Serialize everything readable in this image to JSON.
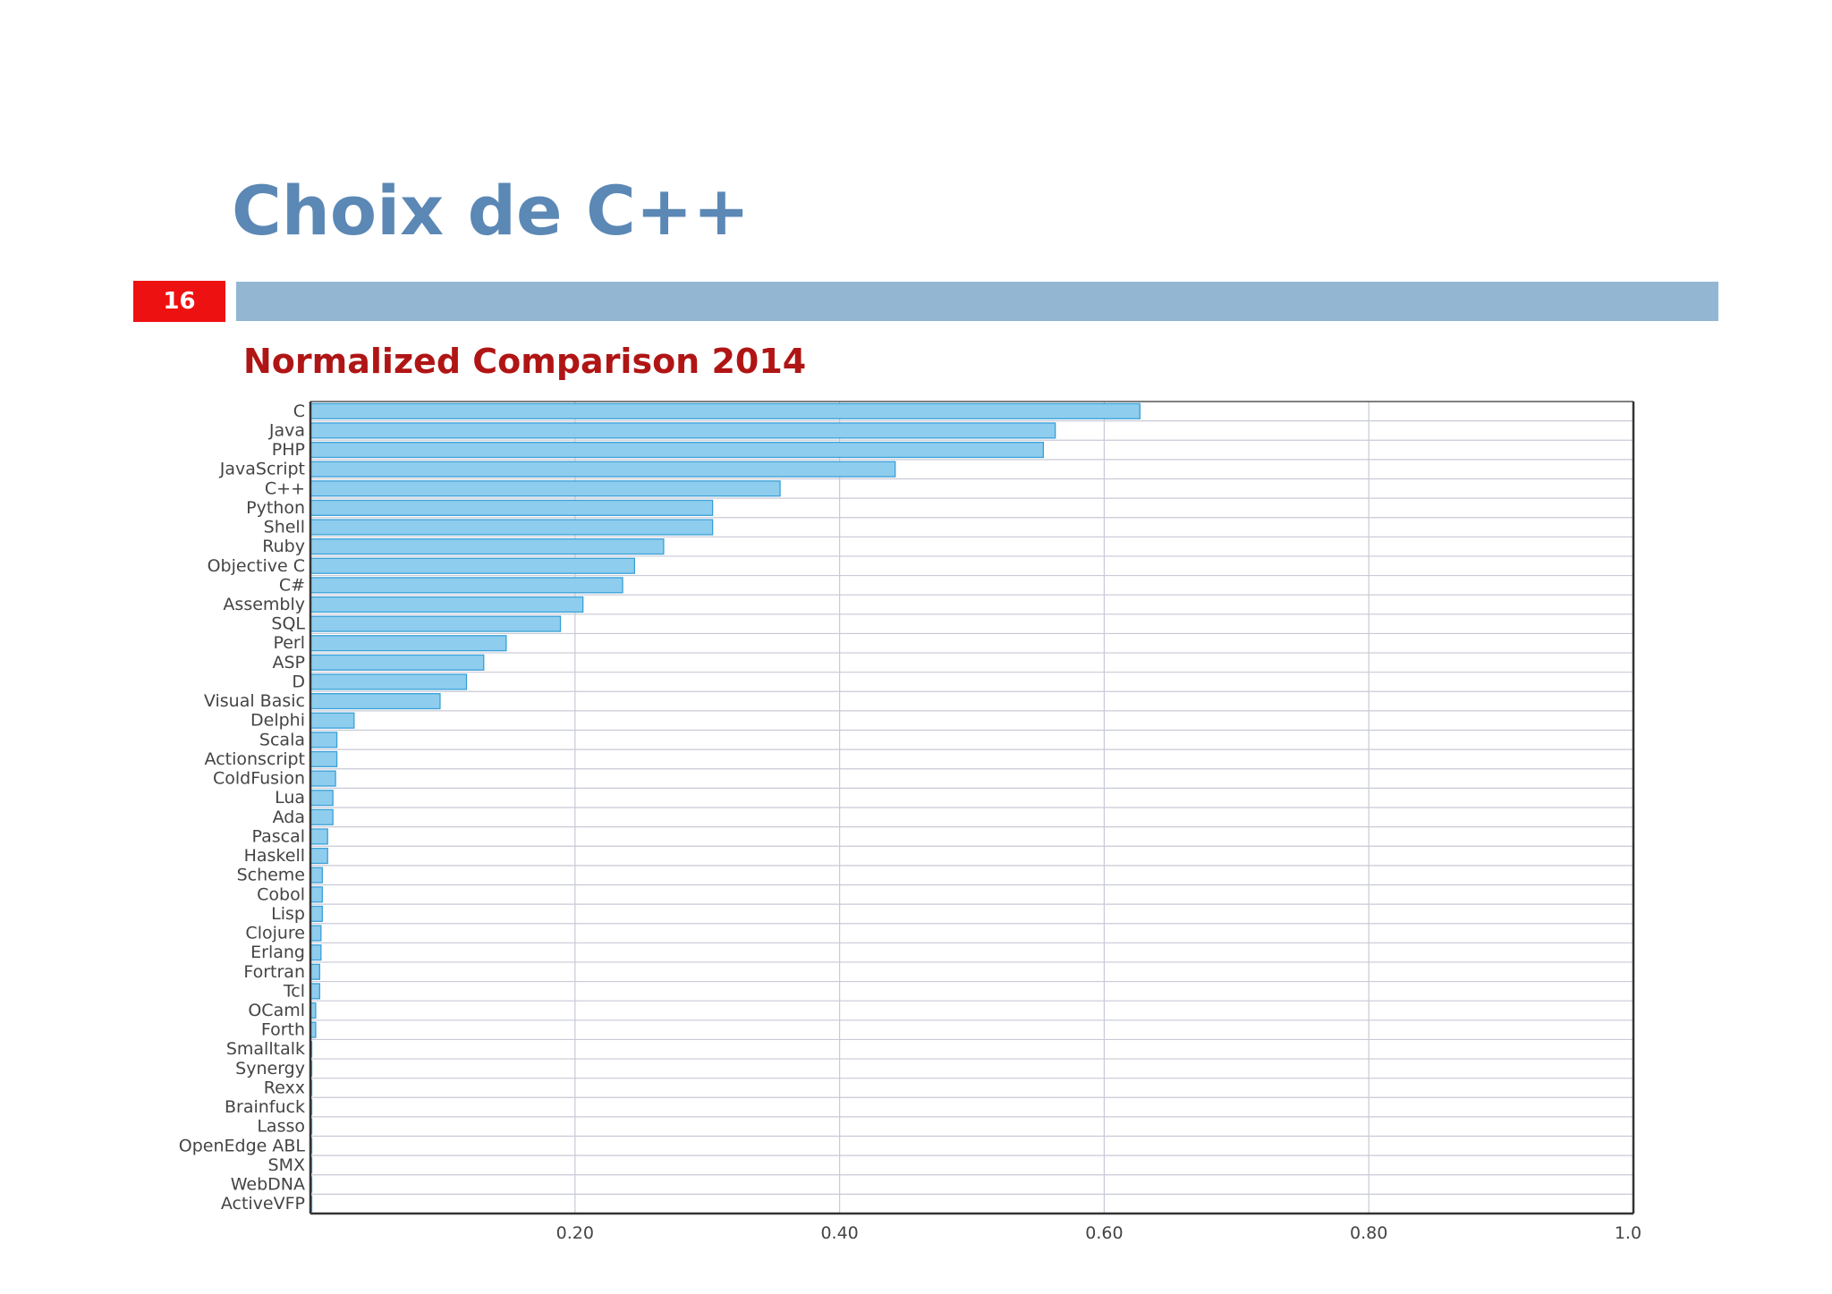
{
  "slide": {
    "title": "Choix de C++",
    "number": "16"
  },
  "colors": {
    "title": "#5b88b5",
    "slide_number_bg": "#ee1111",
    "header_bar": "#93b7d3",
    "chart_heading": "#b01515",
    "bar_fill": "#8ecdee",
    "bar_stroke": "#3aa0d8",
    "grid": "#c8cad6",
    "axis": "#333333"
  },
  "chart_data": {
    "type": "bar",
    "orientation": "horizontal",
    "title": "Normalized Comparison 2014",
    "categories": [
      "C",
      "Java",
      "PHP",
      "JavaScript",
      "C++",
      "Python",
      "Shell",
      "Ruby",
      "Objective C",
      "C#",
      "Assembly",
      "SQL",
      "Perl",
      "ASP",
      "D",
      "Visual Basic",
      "Delphi",
      "Scala",
      "Actionscript",
      "ColdFusion",
      "Lua",
      "Ada",
      "Pascal",
      "Haskell",
      "Scheme",
      "Cobol",
      "Lisp",
      "Clojure",
      "Erlang",
      "Fortran",
      "Tcl",
      "OCaml",
      "Forth",
      "Smalltalk",
      "Synergy",
      "Rexx",
      "Brainfuck",
      "Lasso",
      "OpenEdge ABL",
      "SMX",
      "WebDNA",
      "ActiveVFP"
    ],
    "values": [
      0.627,
      0.563,
      0.554,
      0.442,
      0.355,
      0.304,
      0.304,
      0.267,
      0.245,
      0.236,
      0.206,
      0.189,
      0.148,
      0.131,
      0.118,
      0.098,
      0.033,
      0.02,
      0.02,
      0.019,
      0.017,
      0.017,
      0.013,
      0.013,
      0.009,
      0.009,
      0.009,
      0.008,
      0.008,
      0.007,
      0.007,
      0.004,
      0.004,
      0.001,
      0.001,
      0.001,
      0.001,
      0.001,
      0.001,
      0.001,
      0.001,
      0.001
    ],
    "xlim": [
      0,
      1.0
    ],
    "xticks": [
      0.2,
      0.4,
      0.6,
      0.8,
      1.0
    ],
    "xtick_labels": [
      "0.20",
      "0.40",
      "0.60",
      "0.80",
      "1.00"
    ],
    "xlabel": "",
    "ylabel": "",
    "grid": true
  }
}
